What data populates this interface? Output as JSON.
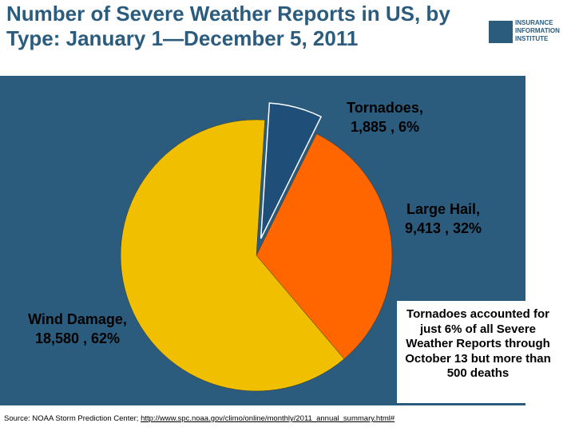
{
  "chart_data": {
    "type": "pie",
    "title": "Number of Severe Weather Reports in US, by Type: January 1—December 5, 2011",
    "categories": [
      "Tornadoes,",
      "Large Hail,",
      "Wind Damage,"
    ],
    "values": [
      1885,
      9413,
      18580
    ],
    "value_labels": [
      "1,885 , 6%",
      "9,413 , 32%",
      "18,580 , 62%"
    ],
    "colors": [
      "#1f4e79",
      "#ff6600",
      "#f0c000"
    ],
    "annotation": "Tornadoes accounted for just 6% of all Severe Weather Reports through October 13 but more than 500 deaths",
    "source": "Source: NOAA Storm Prediction Center; ",
    "source_link": "http://www.spc.noaa.gov/climo/online/monthly/2011_annual_summary.html#"
  },
  "logo": {
    "lines": [
      "INSURANCE",
      "INFORMATION",
      "INSTITUTE"
    ]
  }
}
